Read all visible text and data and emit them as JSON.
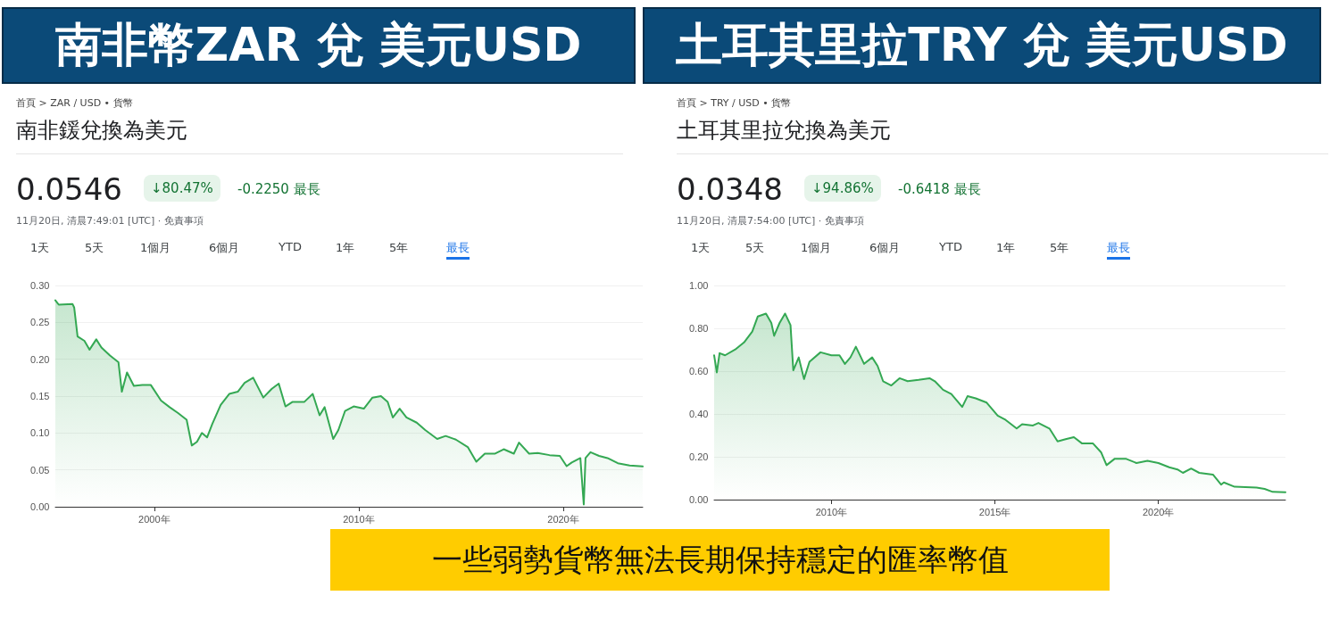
{
  "chart_data": [
    {
      "type": "area",
      "title": "南非幣ZAR 兌 美元USD",
      "annotations": [
        "首頁 > ZAR / USD • 貨幣",
        "南非鍰兌換為美元",
        "0.0546",
        "↓80.47%",
        "-0.2250 最長",
        "11月20日, 清晨7:49:01 [UTC] · 免責事項",
        "1天",
        "5天",
        "1個月",
        "6個月",
        "YTD",
        "1年",
        "5年",
        "最長"
      ],
      "xlim": [
        "1995-03",
        "2023-11-20"
      ],
      "xticks": [
        {
          "value": "2000",
          "label": "2000年"
        },
        {
          "value": "2010",
          "label": "2010年"
        },
        {
          "value": "2020",
          "label": "2020年"
        }
      ],
      "ylim": [
        0,
        0.3
      ],
      "yticks": [
        {
          "value": 0,
          "label": "0.00"
        },
        {
          "value": 0.05,
          "label": "0.05"
        },
        {
          "value": 0.1,
          "label": "0.10"
        },
        {
          "value": 0.15,
          "label": "0.15"
        },
        {
          "value": 0.2,
          "label": "0.20"
        },
        {
          "value": 0.25,
          "label": "0.25"
        },
        {
          "value": 0.3,
          "label": "0.30"
        }
      ],
      "grid": "y",
      "marker": "none",
      "line_style": "solid",
      "series": [
        {
          "color": "#34a853",
          "x": [
            "1995-03",
            "1995-05",
            "1996-01",
            "1996-02",
            "1996-04",
            "1996-08",
            "1996-11",
            "1997-03",
            "1997-06",
            "1997-11",
            "1998-04",
            "1998-06",
            "1998-09",
            "1999-01",
            "1999-06",
            "1999-11",
            "2000-05",
            "2000-10",
            "2001-03",
            "2001-08",
            "2001-11",
            "2002-02",
            "2002-05",
            "2002-08",
            "2002-11",
            "2003-04",
            "2003-09",
            "2004-02",
            "2004-06",
            "2004-11",
            "2005-05",
            "2005-10",
            "2006-02",
            "2006-06",
            "2006-10",
            "2007-05",
            "2007-10",
            "2008-02",
            "2008-05",
            "2008-10",
            "2009-01",
            "2009-05",
            "2009-10",
            "2010-04",
            "2010-09",
            "2011-02",
            "2011-06",
            "2011-09",
            "2012-01",
            "2012-05",
            "2012-11",
            "2013-04",
            "2013-11",
            "2014-04",
            "2014-10",
            "2015-05",
            "2015-10",
            "2016-03",
            "2016-09",
            "2017-02",
            "2017-08",
            "2017-11",
            "2018-05",
            "2018-10",
            "2019-05",
            "2019-11",
            "2020-03",
            "2020-06",
            "2020-11",
            "2021-01",
            "2021-02",
            "2021-05",
            "2021-10",
            "2022-03",
            "2022-09",
            "2023-04",
            "2023-11-20"
          ],
          "values": [
            0.28,
            0.274,
            0.275,
            0.27,
            0.231,
            0.225,
            0.213,
            0.227,
            0.216,
            0.205,
            0.196,
            0.156,
            0.182,
            0.164,
            0.165,
            0.165,
            0.144,
            0.135,
            0.127,
            0.118,
            0.083,
            0.088,
            0.1,
            0.094,
            0.112,
            0.138,
            0.153,
            0.156,
            0.168,
            0.175,
            0.148,
            0.16,
            0.167,
            0.136,
            0.142,
            0.142,
            0.153,
            0.124,
            0.135,
            0.092,
            0.104,
            0.13,
            0.136,
            0.133,
            0.148,
            0.15,
            0.142,
            0.121,
            0.133,
            0.121,
            0.114,
            0.104,
            0.092,
            0.096,
            0.091,
            0.081,
            0.061,
            0.072,
            0.072,
            0.078,
            0.072,
            0.087,
            0.072,
            0.073,
            0.07,
            0.069,
            0.055,
            0.06,
            0.066,
            0.003,
            0.066,
            0.074,
            0.069,
            0.066,
            0.059,
            0.056,
            0.0546
          ]
        }
      ]
    },
    {
      "type": "area",
      "title": "土耳其里拉TRY 兌 美元USD",
      "annotations": [
        "首頁 > TRY / USD • 貨幣",
        "土耳其里拉兌換為美元",
        "0.0348",
        "↓94.86%",
        "-0.6418 最長",
        "11月20日, 清晨7:54:00 [UTC] · 免責事項",
        "1天",
        "5天",
        "1個月",
        "6個月",
        "YTD",
        "1年",
        "5年",
        "最長"
      ],
      "xlim": [
        "2006-06",
        "2023-11-20"
      ],
      "xticks": [
        {
          "value": "2010",
          "label": "2010年"
        },
        {
          "value": "2015",
          "label": "2015年"
        },
        {
          "value": "2020",
          "label": "2020年"
        }
      ],
      "ylim": [
        0,
        1
      ],
      "yticks": [
        {
          "value": 0,
          "label": "0.00"
        },
        {
          "value": 0.2,
          "label": "0.20"
        },
        {
          "value": 0.4,
          "label": "0.40"
        },
        {
          "value": 0.6,
          "label": "0.60"
        },
        {
          "value": 0.8,
          "label": "0.80"
        },
        {
          "value": 1,
          "label": "1.00"
        }
      ],
      "grid": "y",
      "marker": "none",
      "line_style": "solid",
      "series": [
        {
          "color": "#34a853",
          "x": [
            "2006-06",
            "2006-07",
            "2006-08",
            "2006-10",
            "2007-02",
            "2007-05",
            "2007-08",
            "2007-10",
            "2008-01",
            "2008-03",
            "2008-04",
            "2008-06",
            "2008-08",
            "2008-10",
            "2008-11",
            "2009-01",
            "2009-03",
            "2009-05",
            "2009-09",
            "2010-01",
            "2010-04",
            "2010-06",
            "2010-08",
            "2010-10",
            "2011-01",
            "2011-04",
            "2011-06",
            "2011-08",
            "2011-11",
            "2012-02",
            "2012-05",
            "2012-09",
            "2013-01",
            "2013-03",
            "2013-06",
            "2013-09",
            "2014-01",
            "2014-03",
            "2014-06",
            "2014-10",
            "2015-02",
            "2015-05",
            "2015-09",
            "2015-11",
            "2016-03",
            "2016-05",
            "2016-09",
            "2016-12",
            "2017-03",
            "2017-06",
            "2017-09",
            "2018-01",
            "2018-04",
            "2018-06",
            "2018-09",
            "2019-01",
            "2019-05",
            "2019-09",
            "2020-01",
            "2020-05",
            "2020-08",
            "2020-10",
            "2021-01",
            "2021-04",
            "2021-09",
            "2021-12",
            "2022-01",
            "2022-05",
            "2023-01",
            "2023-04",
            "2023-07",
            "2023-11-20"
          ],
          "values": [
            0.674,
            0.594,
            0.684,
            0.674,
            0.704,
            0.734,
            0.785,
            0.855,
            0.869,
            0.825,
            0.765,
            0.825,
            0.869,
            0.815,
            0.604,
            0.664,
            0.563,
            0.644,
            0.688,
            0.674,
            0.674,
            0.634,
            0.664,
            0.714,
            0.634,
            0.664,
            0.624,
            0.553,
            0.533,
            0.567,
            0.553,
            0.559,
            0.567,
            0.553,
            0.513,
            0.493,
            0.433,
            0.483,
            0.473,
            0.453,
            0.392,
            0.372,
            0.332,
            0.352,
            0.346,
            0.358,
            0.332,
            0.272,
            0.282,
            0.292,
            0.262,
            0.262,
            0.221,
            0.161,
            0.191,
            0.191,
            0.171,
            0.181,
            0.171,
            0.151,
            0.141,
            0.125,
            0.145,
            0.125,
            0.117,
            0.07,
            0.08,
            0.06,
            0.056,
            0.05,
            0.036,
            0.0348
          ]
        }
      ]
    },
    {
      "type": "other",
      "title": "一些弱勢貨幣無法長期保持穩定的匯率幣值"
    }
  ]
}
